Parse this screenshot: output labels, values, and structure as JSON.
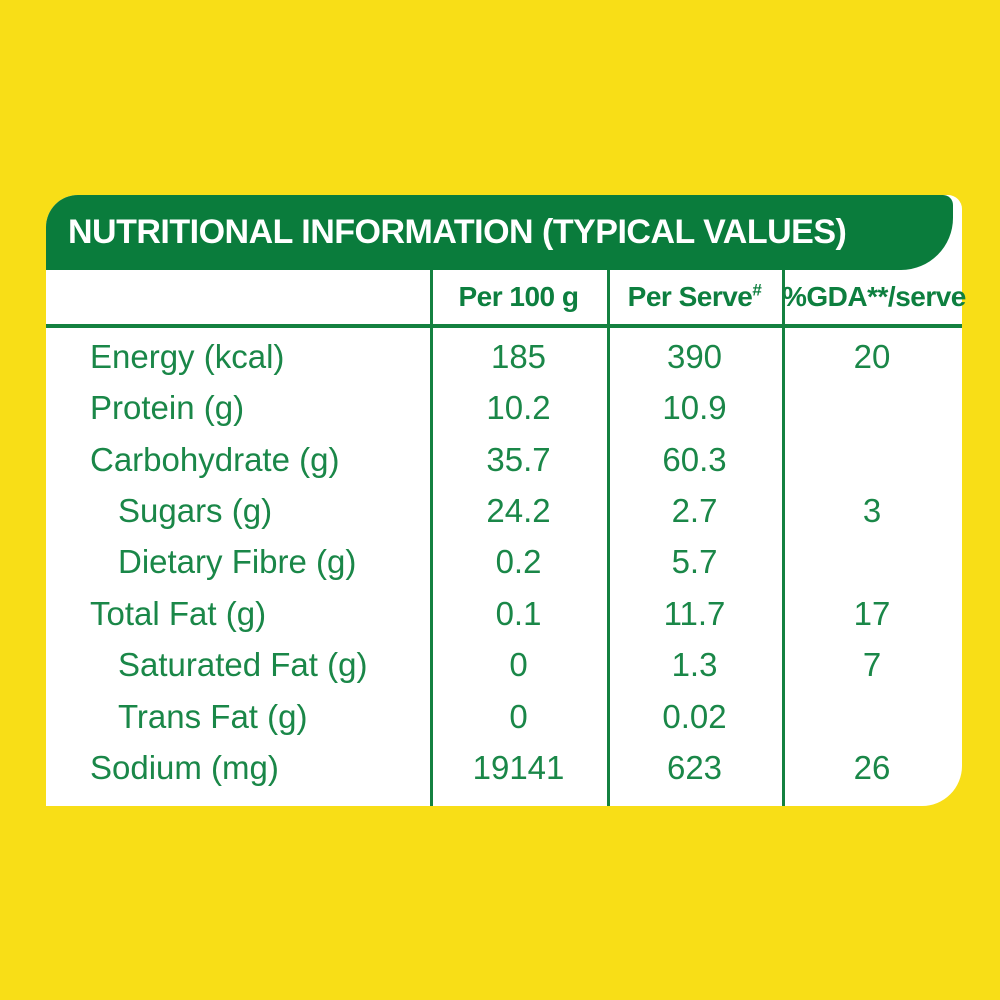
{
  "page": {
    "background_color": "#f8de17"
  },
  "panel": {
    "title": "NUTRITIONAL INFORMATION (TYPICAL VALUES)",
    "colors": {
      "banner_green": "#0a7c3c",
      "text_green": "#1a8748",
      "line_green": "#148140",
      "card_background": "#ffffff",
      "title_text": "#ffffff"
    }
  },
  "table": {
    "columns": [
      {
        "label": "",
        "sup": ""
      },
      {
        "label": "Per 100 g",
        "sup": ""
      },
      {
        "label": "Per Serve",
        "sup": "#"
      },
      {
        "label": "%GDA**/serve",
        "sup": ""
      }
    ],
    "rows": [
      {
        "label": "Energy (kcal)",
        "indent": false,
        "per_100g": "185",
        "per_serve": "390",
        "gda_per_serve": "20"
      },
      {
        "label": "Protein (g)",
        "indent": false,
        "per_100g": "10.2",
        "per_serve": "10.9",
        "gda_per_serve": ""
      },
      {
        "label": "Carbohydrate (g)",
        "indent": false,
        "per_100g": "35.7",
        "per_serve": "60.3",
        "gda_per_serve": ""
      },
      {
        "label": "Sugars (g)",
        "indent": true,
        "per_100g": "24.2",
        "per_serve": "2.7",
        "gda_per_serve": "3"
      },
      {
        "label": "Dietary Fibre (g)",
        "indent": true,
        "per_100g": "0.2",
        "per_serve": "5.7",
        "gda_per_serve": ""
      },
      {
        "label": "Total Fat (g)",
        "indent": false,
        "per_100g": "0.1",
        "per_serve": "11.7",
        "gda_per_serve": "17"
      },
      {
        "label": "Saturated Fat (g)",
        "indent": true,
        "per_100g": "0",
        "per_serve": "1.3",
        "gda_per_serve": "7"
      },
      {
        "label": "Trans Fat (g)",
        "indent": true,
        "per_100g": "0",
        "per_serve": "0.02",
        "gda_per_serve": ""
      },
      {
        "label": "Sodium (mg)",
        "indent": false,
        "per_100g": "19141",
        "per_serve": "623",
        "gda_per_serve": "26"
      }
    ]
  }
}
